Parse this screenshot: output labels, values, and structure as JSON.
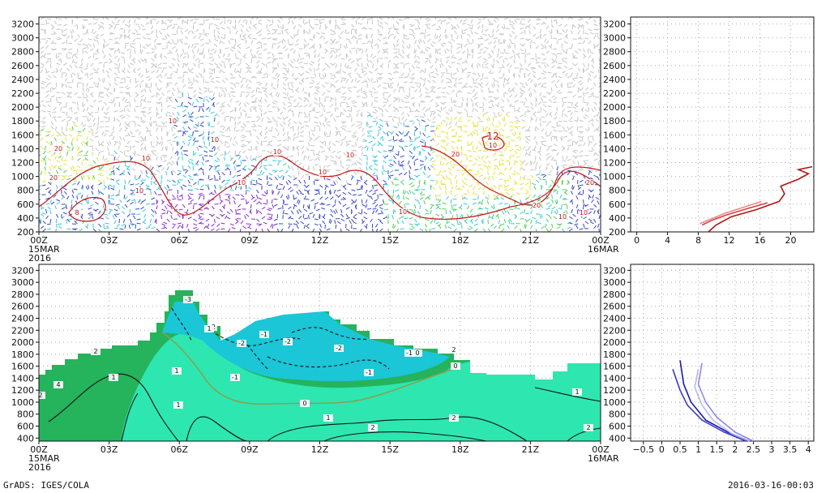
{
  "footer": {
    "left": "GrADS: IGES/COLA",
    "right": "2016-03-16-00:03"
  },
  "colors": {
    "vector_gray": "#c4c4c4",
    "cyan": "#3cc8d8",
    "blue": "#3a46c8",
    "purple": "#8a2ed0",
    "green": "#4cd050",
    "yellow": "#e6e040",
    "contour_red": "#c41818",
    "bottom_dark_green": "#25b35c",
    "bottom_mid_green": "#2ee6b0",
    "bottom_cyan": "#1bc6d6",
    "profile_dark_blue": "#1a1aa6",
    "profile_light_blue": "#8c8ce6"
  },
  "chart_data": [
    {
      "id": "top-timeheight",
      "type": "heatmap",
      "xticks": [
        "00Z",
        "03Z",
        "06Z",
        "09Z",
        "12Z",
        "15Z",
        "18Z",
        "21Z",
        "00Z"
      ],
      "x_start_date": [
        "15MAR",
        "2016"
      ],
      "x_end_date": "16MAR",
      "yticks": [
        200,
        400,
        600,
        800,
        1000,
        1200,
        1400,
        1600,
        1800,
        2000,
        2200,
        2400,
        2600,
        2800,
        3000,
        3200
      ],
      "ylim": [
        200,
        3300
      ],
      "contour_labels": [
        "8",
        "10",
        "10",
        "10",
        "10",
        "10",
        "10",
        "10",
        "10",
        "10",
        "12",
        "10",
        "20",
        "20",
        "20",
        "20",
        "20",
        "10",
        "10"
      ]
    },
    {
      "id": "top-profile",
      "type": "line",
      "xticks": [
        0,
        4,
        8,
        12,
        16,
        20
      ],
      "xlim": [
        -0.8,
        23
      ],
      "yticks": [
        200,
        400,
        600,
        800,
        1000,
        1200,
        1400,
        1600,
        1800,
        2000,
        2200,
        2400,
        2600,
        2800,
        3000,
        3200
      ],
      "ylim": [
        200,
        3300
      ],
      "series": [
        {
          "color": "#e88a8a",
          "x": [
            8.2,
            9.5,
            11.5,
            14,
            16.2
          ],
          "y": [
            320,
            380,
            470,
            560,
            640
          ]
        },
        {
          "color": "#d84040",
          "x": [
            8.5,
            9.6,
            11.8,
            14.5,
            17
          ],
          "y": [
            300,
            360,
            450,
            540,
            620
          ]
        },
        {
          "color": "#b01818",
          "x": [
            9.3,
            10.3,
            12.3,
            15.5,
            18.5,
            19.2,
            18.7,
            21,
            22.3,
            21,
            22.8
          ],
          "y": [
            200,
            300,
            420,
            520,
            640,
            750,
            860,
            960,
            1040,
            1100,
            1140
          ]
        }
      ]
    },
    {
      "id": "bottom-timeheight",
      "type": "heatmap",
      "xticks": [
        "00Z",
        "03Z",
        "06Z",
        "09Z",
        "12Z",
        "15Z",
        "18Z",
        "21Z",
        "00Z"
      ],
      "x_start_date": [
        "15MAR",
        "2016"
      ],
      "x_end_date": "16MAR",
      "yticks": [
        400,
        600,
        800,
        1000,
        1200,
        1400,
        1600,
        1800,
        2000,
        2200,
        2400,
        2600,
        2800,
        3000,
        3200
      ],
      "ylim": [
        350,
        3300
      ],
      "contour_labels": [
        "-3",
        "-2",
        "-2",
        "-2",
        "-2",
        "-1",
        "-1",
        "-1",
        "-1",
        "0",
        "0",
        "0",
        "1",
        "1",
        "1",
        "1",
        "1",
        "2",
        "2",
        "2",
        "2",
        "2",
        "4",
        "2",
        "1"
      ]
    },
    {
      "id": "bottom-profile",
      "type": "line",
      "xticks": [
        "−0.5",
        "0",
        "0.5",
        "1",
        "1.5",
        "2",
        "2.5",
        "3",
        "3.5",
        "4"
      ],
      "xlim": [
        -0.85,
        4.15
      ],
      "yticks": [
        400,
        600,
        800,
        1000,
        1200,
        1400,
        1600,
        1800,
        2000,
        2200,
        2400,
        2600,
        2800,
        3000,
        3200
      ],
      "ylim": [
        350,
        3300
      ],
      "series": [
        {
          "color": "#1a1aa6",
          "x": [
            0.5,
            0.6,
            0.8,
            1.2,
            1.8,
            2.4
          ],
          "y": [
            1700,
            1300,
            1000,
            700,
            500,
            350
          ]
        },
        {
          "color": "#3a3ad0",
          "x": [
            0.3,
            0.5,
            0.7,
            1.1,
            1.7,
            2.3
          ],
          "y": [
            1550,
            1200,
            950,
            700,
            500,
            350
          ]
        },
        {
          "color": "#8c8ce6",
          "x": [
            1.1,
            1.0,
            1.2,
            1.5,
            2.0,
            2.5
          ],
          "y": [
            1650,
            1300,
            1000,
            750,
            500,
            350
          ]
        },
        {
          "color": "#b8b8f0",
          "x": [
            1.0,
            0.9,
            1.1,
            1.4,
            1.9,
            2.4
          ],
          "y": [
            1550,
            1250,
            950,
            700,
            480,
            350
          ]
        }
      ]
    }
  ]
}
